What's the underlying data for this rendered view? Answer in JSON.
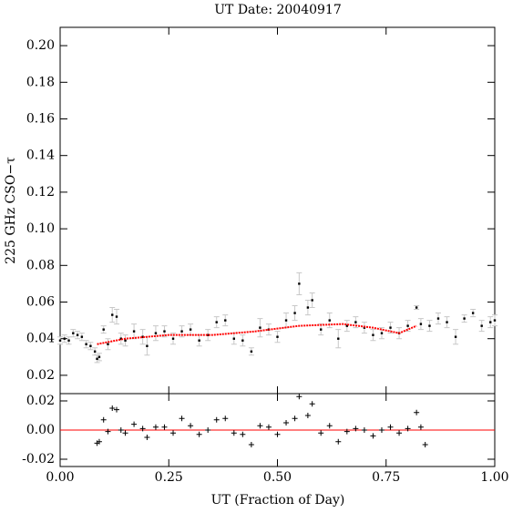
{
  "chart_data": [
    {
      "type": "errorbar",
      "title": "UT Date: 20040917",
      "ylabel": "225 GHz CSO−τ",
      "x": [
        0.0,
        0.01,
        0.02,
        0.03,
        0.04,
        0.05,
        0.06,
        0.07,
        0.08,
        0.085,
        0.09,
        0.1,
        0.11,
        0.12,
        0.13,
        0.14,
        0.15,
        0.17,
        0.19,
        0.2,
        0.22,
        0.24,
        0.26,
        0.28,
        0.3,
        0.32,
        0.34,
        0.36,
        0.38,
        0.4,
        0.42,
        0.44,
        0.46,
        0.48,
        0.5,
        0.52,
        0.54,
        0.55,
        0.57,
        0.58,
        0.6,
        0.62,
        0.64,
        0.66,
        0.68,
        0.7,
        0.72,
        0.74,
        0.76,
        0.78,
        0.8,
        0.82,
        0.83,
        0.85,
        0.87,
        0.89,
        0.91,
        0.93,
        0.95,
        0.97,
        0.99,
        1.0
      ],
      "values": [
        0.039,
        0.04,
        0.039,
        0.043,
        0.042,
        0.041,
        0.037,
        0.036,
        0.033,
        0.029,
        0.03,
        0.045,
        0.037,
        0.053,
        0.052,
        0.04,
        0.039,
        0.044,
        0.041,
        0.036,
        0.043,
        0.044,
        0.04,
        0.044,
        0.045,
        0.039,
        0.042,
        0.049,
        0.05,
        0.04,
        0.039,
        0.033,
        0.046,
        0.045,
        0.041,
        0.05,
        0.054,
        0.07,
        0.057,
        0.061,
        0.045,
        0.05,
        0.04,
        0.047,
        0.049,
        0.046,
        0.042,
        0.043,
        0.046,
        0.043,
        0.047,
        0.057,
        0.048,
        0.047,
        0.051,
        0.049,
        0.041,
        0.051,
        0.054,
        0.047,
        0.049,
        0.05
      ],
      "errors": [
        0.002,
        0.002,
        0.002,
        0.002,
        0.002,
        0.002,
        0.002,
        0.002,
        0.002,
        0.002,
        0.002,
        0.002,
        0.003,
        0.004,
        0.004,
        0.003,
        0.003,
        0.004,
        0.004,
        0.005,
        0.004,
        0.003,
        0.003,
        0.003,
        0.003,
        0.003,
        0.003,
        0.003,
        0.003,
        0.003,
        0.003,
        0.002,
        0.005,
        0.003,
        0.003,
        0.004,
        0.004,
        0.006,
        0.004,
        0.004,
        0.003,
        0.004,
        0.005,
        0.003,
        0.003,
        0.003,
        0.003,
        0.003,
        0.003,
        0.003,
        0.003,
        0.001,
        0.003,
        0.003,
        0.003,
        0.003,
        0.004,
        0.002,
        0.002,
        0.003,
        0.003,
        0.003
      ],
      "color": "#000000",
      "error_color": "#c8c8c8",
      "fit": {
        "x": [
          0.085,
          0.15,
          0.25,
          0.35,
          0.45,
          0.55,
          0.65,
          0.72,
          0.78,
          0.82
        ],
        "values": [
          0.037,
          0.04,
          0.042,
          0.042,
          0.044,
          0.047,
          0.048,
          0.046,
          0.043,
          0.047
        ],
        "color": "#ff0000"
      },
      "xlim": [
        0,
        1
      ],
      "ylim": [
        0.01,
        0.21
      ],
      "yticks": [
        0.02,
        0.04,
        0.06,
        0.08,
        {
          "value": 0.1,
          "label": "0.10"
        },
        0.12,
        0.14,
        0.16,
        0.18,
        {
          "value": 0.2,
          "label": "0.20"
        }
      ]
    },
    {
      "type": "scatter",
      "xlabel": "UT (Fraction of Day)",
      "x": [
        0.085,
        0.09,
        0.1,
        0.11,
        0.12,
        0.13,
        0.14,
        0.15,
        0.17,
        0.19,
        0.2,
        0.22,
        0.24,
        0.26,
        0.28,
        0.3,
        0.32,
        0.34,
        0.36,
        0.38,
        0.4,
        0.42,
        0.44,
        0.46,
        0.48,
        0.5,
        0.52,
        0.54,
        0.55,
        0.57,
        0.58,
        0.6,
        0.62,
        0.64,
        0.66,
        0.68,
        0.7,
        0.72,
        0.74,
        0.76,
        0.78,
        0.8,
        0.82,
        0.83,
        0.84
      ],
      "values": [
        -0.009,
        -0.008,
        0.007,
        -0.001,
        0.015,
        0.014,
        0.0,
        -0.002,
        0.004,
        0.001,
        -0.005,
        0.002,
        0.002,
        -0.002,
        0.008,
        0.003,
        -0.003,
        0.0,
        0.007,
        0.008,
        -0.002,
        -0.003,
        -0.01,
        0.003,
        0.002,
        -0.003,
        0.005,
        0.008,
        0.023,
        0.01,
        0.018,
        -0.002,
        0.003,
        -0.008,
        -0.001,
        0.001,
        0.0,
        -0.004,
        0.0,
        0.002,
        -0.002,
        0.001,
        0.012,
        0.002,
        -0.01
      ],
      "color": "#000000",
      "reference": 0,
      "reference_color": "#ff0000",
      "xlim": [
        0,
        1
      ],
      "ylim": [
        -0.025,
        0.025
      ],
      "xticks": [
        {
          "value": 0,
          "label": "0.00"
        },
        0.25,
        {
          "value": 0.5,
          "label": "0.50"
        },
        0.75,
        {
          "value": 1,
          "label": "1.00"
        }
      ],
      "yticks": [
        -0.02,
        {
          "value": 0,
          "label": "0.00"
        },
        0.02
      ]
    }
  ]
}
